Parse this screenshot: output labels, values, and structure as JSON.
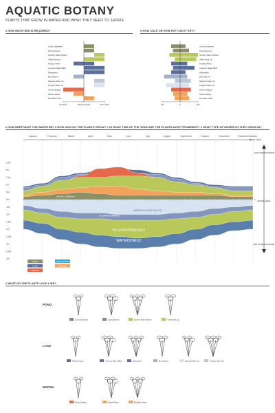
{
  "header": {
    "title": "AQUATIC BOTANY",
    "subtitle": "PLANTS THAT GROW IN WATER AND WHAT THEY NEED TO SURVIE"
  },
  "sections": {
    "sun": "// HOW MUCH SUN IS REQUIRED?",
    "temp": "// HOW COLD OR HOW HOT CAN IT GET?",
    "depth": "// HOW DEEP MUST THE WATER BE?  //  HOW HIGH DO THE PLANTS GROW?  //  AT WHAT TIME OF THE YEAR ARE THE PLANTS MOST PROMINENT?  //  WHAT TYPE OF WATER DO THEY GROW IN?",
    "look": "// WHAT DO THE PLANTS LOOK LIKE?"
  },
  "colors": {
    "pond": "#8c8f68",
    "pond2": "#b8c95a",
    "lake": "#5b6f9a",
    "lake2": "#9fb1cf",
    "marsh": "#e8694a",
    "marsh2": "#f2a25a",
    "water": "#d8e3f1",
    "freshwater": "#1ab2e6"
  },
  "chart_data": [
    {
      "type": "bar",
      "title": "HOW MUCH SUN IS REQUIRED?",
      "categories": [
        "Lemon Duckweed",
        "Star Duckweed",
        "Northern Water Plantain",
        "Yellow Pond Lily",
        "Floating Hearts",
        "American Water Milfoil",
        "Watershield",
        "Blue Flag Iris",
        "Magnolia Water Lily",
        "Fragrant Water Lily",
        "Skunk Cabbage",
        "Pickerel Weed",
        "Broadleaf Cattail"
      ],
      "series_colors": [
        "#8c8f68",
        "#8c8f68",
        "#b8c95a",
        "#b8c95a",
        "#5b6f9a",
        "#5b6f9a",
        "#5b6f9a",
        "#9fb1cf",
        "#b9c7df",
        "#d8e3f1",
        "#e8694a",
        "#f2a25a",
        "#f2a25a"
      ],
      "ranges": [
        [
          0,
          0.5
        ],
        [
          0,
          0.5
        ],
        [
          0.5,
          1
        ],
        [
          0,
          1
        ],
        [
          -0.5,
          0.5
        ],
        [
          0,
          1
        ],
        [
          0,
          1
        ],
        [
          -0.5,
          0
        ],
        [
          0.5,
          1
        ],
        [
          0.5,
          1
        ],
        [
          -1,
          0
        ],
        [
          -0.5,
          0
        ],
        [
          0,
          0.5
        ]
      ],
      "ticks": [
        "NO SUN",
        "PARTIAL SUN",
        "FULL SUN"
      ]
    },
    {
      "type": "bar",
      "title": "HOW COLD OR HOW HOT CAN IT GET?",
      "categories": [
        "Lemon Duckweed",
        "Star Duckweed",
        "Northern Water Plantain",
        "Yellow Pond Lily",
        "Floating Hearts",
        "American Water Milfoil",
        "Watershield",
        "Blue Flag Iris",
        "Magnolia Water Lily",
        "Fragrant Water Lily",
        "Skunk Cabbage",
        "Pickerel Weed",
        "Broadleaf Cattail"
      ],
      "ranges": [
        [
          -0.5,
          0.3
        ],
        [
          -0.4,
          0.5
        ],
        [
          -0.6,
          1
        ],
        [
          -0.3,
          0.9
        ],
        [
          -0.5,
          0.4
        ],
        [
          -0.4,
          0.8
        ],
        [
          -0.5,
          0.3
        ],
        [
          -0.9,
          0.4
        ],
        [
          -0.3,
          0.6
        ],
        [
          -0.8,
          0.5
        ],
        [
          -0.5,
          0.6
        ],
        [
          -0.4,
          0.4
        ],
        [
          -0.3,
          0.5
        ]
      ],
      "ticks": [
        "-15°",
        "0°",
        "+15°"
      ]
    },
    {
      "type": "area",
      "title": "HOW DEEP MUST THE WATER BE? / HOW HIGH DO THE PLANTS GROW? / AT WHAT TIME OF THE YEAR ARE THE PLANTS MOST PROMINENT? / WHAT TYPE OF WATER DO THEY GROW IN?",
      "x": [
        "January",
        "February",
        "March",
        "April",
        "May",
        "June",
        "July",
        "August",
        "September",
        "October",
        "November",
        "December",
        "January"
      ],
      "y_ticks_up": [
        "2.5m",
        "2m",
        "1.5m",
        "1m",
        ".5m",
        ".0m"
      ],
      "y_ticks_down": [
        "-.5m",
        "-1m",
        "-1.5m",
        "-2m",
        "-2.5m",
        "-3m",
        "-3.5m",
        "-4m"
      ],
      "right_labels": [
        "TIM OF YEAR",
        "HIGHT ABOVE WATER",
        "WATER LEVEL",
        "DEPTH BELOW WATER"
      ],
      "above_series": [
        {
          "name": "AMERICAN WATER MILFOIL",
          "color": "#5b6f9a",
          "values": [
            0.9,
            1.1,
            1.6,
            1.8,
            2.0,
            2.1,
            2.0,
            1.8,
            1.5,
            1.2,
            1.0,
            0.9,
            0.9
          ]
        },
        {
          "name": "FLOATING HEARTS",
          "color": "#8396bd",
          "values": [
            0.8,
            1.0,
            1.5,
            1.7,
            1.9,
            1.9,
            1.8,
            1.7,
            1.4,
            1.1,
            0.9,
            0.8,
            0.8
          ]
        },
        {
          "name": "LEMON DUCKWEED",
          "color": "#e8694a",
          "values": [
            0.3,
            0.6,
            1.2,
            1.6,
            2.1,
            2.2,
            1.8,
            1.5,
            1.0,
            0.6,
            0.4,
            0.3,
            0.3
          ]
        },
        {
          "name": "STAR DUCKWEED",
          "color": "#b8c95a",
          "values": [
            0.6,
            0.9,
            1.3,
            1.5,
            1.5,
            1.6,
            1.6,
            1.5,
            1.2,
            1.0,
            0.8,
            0.6,
            0.6
          ]
        },
        {
          "name": "BROADLEAF CATTAIL",
          "color": "#f2a25a",
          "values": [
            0.3,
            0.5,
            0.7,
            0.8,
            0.9,
            0.9,
            0.7,
            0.6,
            0.5,
            0.5,
            0.4,
            0.3,
            0.3
          ]
        },
        {
          "name": "SKUNK CABBAGE",
          "color": "#8c8f68",
          "values": [
            0.2,
            0.3,
            0.4,
            0.5,
            0.4,
            0.3,
            0.3,
            0.3,
            0.3,
            0.3,
            0.3,
            0.2,
            0.2
          ]
        }
      ],
      "below_series": [
        {
          "name": "WATERSHIELD",
          "color": "#5b7fad",
          "values": [
            -2.0,
            -2.3,
            -2.7,
            -3.0,
            -3.2,
            -3.3,
            -3.3,
            -3.2,
            -3.0,
            -2.7,
            -2.4,
            -2.1,
            -2.0
          ]
        },
        {
          "name": "YELLOW POND LILY",
          "color": "#b8c95a",
          "values": [
            -1.4,
            -1.6,
            -2.0,
            -2.2,
            -2.4,
            -2.5,
            -2.6,
            -2.5,
            -2.3,
            -2.0,
            -1.7,
            -1.5,
            -1.4
          ]
        },
        {
          "name": "FLOATING HEARTS",
          "color": "#8396bd",
          "values": [
            -0.7,
            -0.9,
            -1.2,
            -1.3,
            -1.3,
            -1.4,
            -1.4,
            -1.4,
            -1.3,
            -1.2,
            -1.0,
            -0.8,
            -0.7
          ]
        },
        {
          "name": "AMERICAN WATER MILFOIL",
          "color": "#d8e3f1",
          "values": [
            -0.4,
            -0.6,
            -0.8,
            -0.9,
            -0.9,
            -1.0,
            -1.0,
            -1.0,
            -0.9,
            -0.8,
            -0.6,
            -0.5,
            -0.4
          ]
        }
      ],
      "legend": [
        {
          "label": "POND",
          "color": "#8c8f68"
        },
        {
          "label": "LAKE",
          "color": "#5b6f9a"
        },
        {
          "label": "MARSH",
          "color": "#e8694a"
        },
        {
          "label": "FRESHWATER",
          "color": "#1ab2e6"
        },
        {
          "label": "ROOTED",
          "color": "#f2a25a"
        }
      ]
    }
  ],
  "gallery": {
    "rows": [
      {
        "group": "POND",
        "items": [
          {
            "label": "Lemon Duckweed",
            "color": "#8c8f68"
          },
          {
            "label": "Star Duckweed",
            "color": "#8c8f68"
          },
          {
            "label": "Northern Water Plantain",
            "color": "#b8c95a"
          },
          {
            "label": "Yellow Pond Lily",
            "color": "#b8c95a"
          }
        ]
      },
      {
        "group": "LAKE",
        "items": [
          {
            "label": "Floating Hearts",
            "color": "#5b6f9a"
          },
          {
            "label": "American Water Milfoil",
            "color": "#5b6f9a"
          },
          {
            "label": "Watershield",
            "color": "#5b6f9a"
          },
          {
            "label": "Blue Flag Iris",
            "color": "#9fb1cf"
          },
          {
            "label": "Magnolia Water Lily",
            "color": "#d8e3f1"
          },
          {
            "label": "Fragrant Water Lily",
            "color": "#b9c7df"
          }
        ]
      },
      {
        "group": "MARSH",
        "items": [
          {
            "label": "Skunk Cabbage",
            "color": "#e8694a"
          },
          {
            "label": "Pickerel Weed",
            "color": "#f2a25a"
          },
          {
            "label": "Broadleaf Cattail",
            "color": "#f2a25a"
          }
        ]
      }
    ]
  }
}
